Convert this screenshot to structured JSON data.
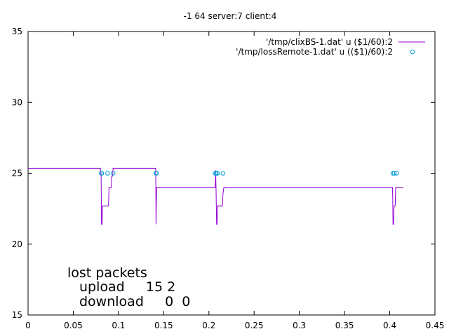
{
  "chart_data": {
    "type": "line",
    "title": "-1 64 server:7 client:4",
    "xlabel": "",
    "ylabel": "",
    "xlim": [
      0,
      0.45
    ],
    "ylim": [
      15,
      35
    ],
    "xticks": [
      "0",
      "0.05",
      "0.1",
      "0.15",
      "0.2",
      "0.25",
      "0.3",
      "0.35",
      "0.4",
      "0.45"
    ],
    "yticks": [
      "15",
      "20",
      "25",
      "30",
      "35"
    ],
    "grid": false,
    "legend_position": "top-right",
    "colors": {
      "line": "#9400d3",
      "points": "#009ed7"
    },
    "series": [
      {
        "name": "'/tmp/clixBS-1.dat' u ($1/60):2",
        "style": "line",
        "x": [
          0,
          0.08,
          0.0808,
          0.0812,
          0.0818,
          0.0825,
          0.083,
          0.089,
          0.0895,
          0.092,
          0.0925,
          0.0935,
          0.094,
          0.141,
          0.1412,
          0.1415,
          0.1418,
          0.1422,
          0.1425,
          0.207,
          0.2075,
          0.208,
          0.2085,
          0.209,
          0.2095,
          0.21,
          0.215,
          0.2155,
          0.2165,
          0.217,
          0.403,
          0.4033,
          0.4036,
          0.4042,
          0.4048,
          0.4052,
          0.406,
          0.4065,
          0.407,
          0.415
        ],
        "y": [
          25.35,
          25.35,
          24.9,
          21.4,
          21.4,
          22.7,
          22.7,
          22.7,
          24.0,
          24.0,
          24.8,
          24.8,
          25.35,
          25.35,
          24.9,
          21.4,
          22.7,
          24.0,
          24.0,
          24.0,
          25.2,
          23.5,
          21.4,
          21.4,
          22.7,
          22.7,
          22.7,
          23.5,
          24.0,
          24.0,
          24.0,
          23.2,
          21.4,
          21.4,
          22.7,
          22.7,
          22.7,
          24.0,
          24.0,
          24.0
        ]
      },
      {
        "name": "'/tmp/lossRemote-1.dat' u (($1)/60):2",
        "style": "points",
        "x": [
          0.081,
          0.0815,
          0.088,
          0.094,
          0.1415,
          0.142,
          0.207,
          0.208,
          0.2095,
          0.2155,
          0.4035,
          0.405,
          0.4075
        ],
        "y": [
          25,
          25,
          25,
          25,
          25,
          25,
          25,
          25,
          25,
          25,
          25,
          25,
          25
        ]
      }
    ],
    "annotation": {
      "line1": "lost packets",
      "line2": "upload     15 2",
      "line3": "download     0  0"
    }
  }
}
